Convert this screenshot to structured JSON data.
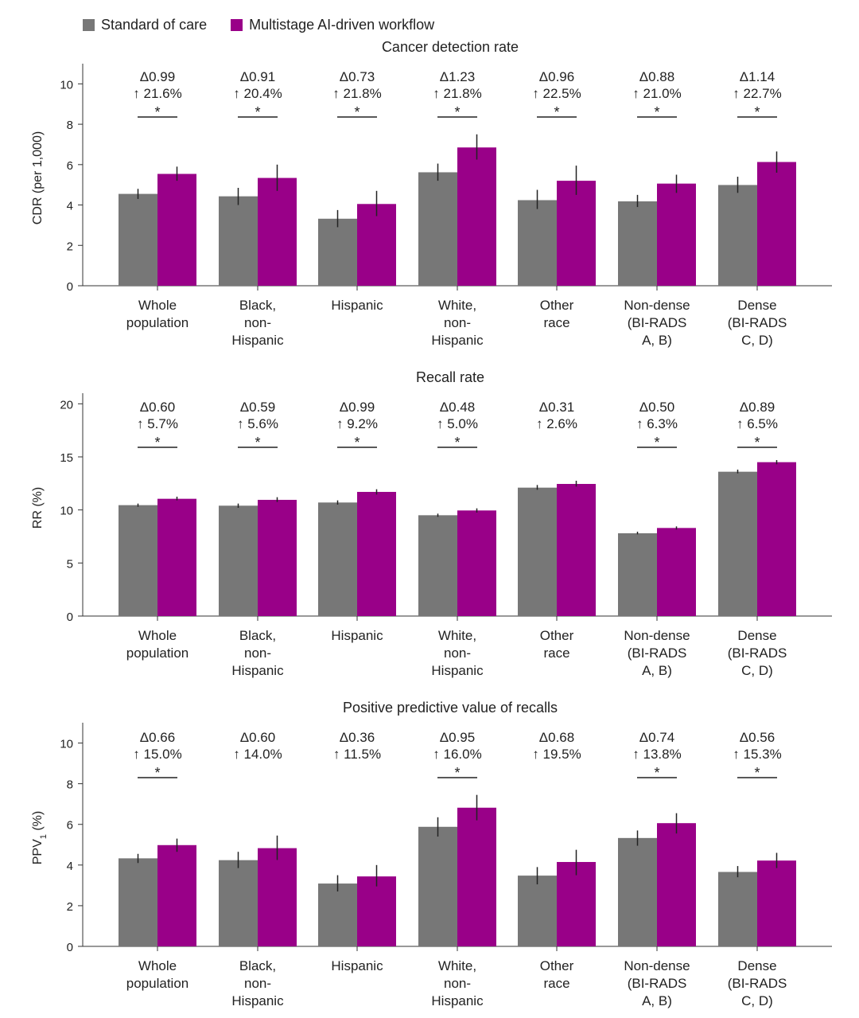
{
  "legend": {
    "series_a": "Standard of care",
    "series_b": "Multistage AI-driven workflow",
    "color_a": "#777777",
    "color_b": "#990088"
  },
  "categories": [
    [
      "Whole",
      "population"
    ],
    [
      "Black,",
      "non-",
      "Hispanic"
    ],
    [
      "Hispanic"
    ],
    [
      "White,",
      "non-",
      "Hispanic"
    ],
    [
      "Other",
      "race"
    ],
    [
      "Non-dense",
      "(BI-RADS",
      "A, B)"
    ],
    [
      "Dense",
      "(BI-RADS",
      "C, D)"
    ]
  ],
  "chart_data": [
    {
      "type": "bar",
      "title": "Cancer detection rate",
      "ylabel": "CDR (per 1,000)",
      "ylabel_sub": "",
      "ylabel_post": "",
      "ylim": [
        0,
        11
      ],
      "yticks": [
        0,
        2,
        4,
        6,
        8,
        10
      ],
      "series": [
        {
          "name": "Standard of care",
          "values": [
            4.55,
            4.43,
            3.32,
            5.62,
            4.24,
            4.18,
            4.99
          ],
          "err_low": [
            4.3,
            4.0,
            2.9,
            5.2,
            3.8,
            3.9,
            4.6
          ],
          "err_high": [
            4.8,
            4.85,
            3.75,
            6.05,
            4.75,
            4.5,
            5.4
          ]
        },
        {
          "name": "Multistage AI-driven workflow",
          "values": [
            5.54,
            5.34,
            4.05,
            6.85,
            5.2,
            5.06,
            6.13
          ],
          "err_low": [
            5.2,
            4.7,
            3.45,
            6.25,
            4.5,
            4.6,
            5.6
          ],
          "err_high": [
            5.9,
            6.0,
            4.7,
            7.5,
            5.95,
            5.5,
            6.65
          ]
        }
      ],
      "annotations": [
        {
          "delta": "Δ0.99",
          "pct": "↑ 21.6%",
          "sig": true
        },
        {
          "delta": "Δ0.91",
          "pct": "↑ 20.4%",
          "sig": true
        },
        {
          "delta": "Δ0.73",
          "pct": "↑ 21.8%",
          "sig": true
        },
        {
          "delta": "Δ1.23",
          "pct": "↑ 21.8%",
          "sig": true
        },
        {
          "delta": "Δ0.96",
          "pct": "↑ 22.5%",
          "sig": true
        },
        {
          "delta": "Δ0.88",
          "pct": "↑ 21.0%",
          "sig": true
        },
        {
          "delta": "Δ1.14",
          "pct": "↑ 22.7%",
          "sig": true
        }
      ]
    },
    {
      "type": "bar",
      "title": "Recall rate",
      "ylabel": "RR (%)",
      "ylabel_sub": "",
      "ylabel_post": "",
      "ylim": [
        0,
        21
      ],
      "yticks": [
        0,
        5,
        10,
        15,
        20
      ],
      "series": [
        {
          "name": "Standard of care",
          "values": [
            10.45,
            10.4,
            10.7,
            9.5,
            12.1,
            7.8,
            13.6
          ],
          "err_low": [
            10.3,
            10.2,
            10.5,
            9.35,
            11.9,
            7.7,
            13.45
          ],
          "err_high": [
            10.6,
            10.6,
            10.9,
            9.65,
            12.35,
            7.95,
            13.8
          ]
        },
        {
          "name": "Multistage AI-driven workflow",
          "values": [
            11.05,
            10.95,
            11.7,
            9.95,
            12.45,
            8.3,
            14.5
          ],
          "err_low": [
            10.9,
            10.75,
            11.45,
            9.75,
            12.2,
            8.15,
            14.3
          ],
          "err_high": [
            11.25,
            11.2,
            11.95,
            10.15,
            12.75,
            8.45,
            14.7
          ]
        }
      ],
      "annotations": [
        {
          "delta": "Δ0.60",
          "pct": "↑ 5.7%",
          "sig": true
        },
        {
          "delta": "Δ0.59",
          "pct": "↑ 5.6%",
          "sig": true
        },
        {
          "delta": "Δ0.99",
          "pct": "↑ 9.2%",
          "sig": true
        },
        {
          "delta": "Δ0.48",
          "pct": "↑ 5.0%",
          "sig": true
        },
        {
          "delta": "Δ0.31",
          "pct": "↑ 2.6%",
          "sig": false
        },
        {
          "delta": "Δ0.50",
          "pct": "↑ 6.3%",
          "sig": true
        },
        {
          "delta": "Δ0.89",
          "pct": "↑ 6.5%",
          "sig": true
        }
      ]
    },
    {
      "type": "bar",
      "title": "Positive predictive value of recalls",
      "ylabel": "PPV",
      "ylabel_sub": "1",
      "ylabel_post": " (%)",
      "ylim": [
        0,
        11
      ],
      "yticks": [
        0,
        2,
        4,
        6,
        8,
        10
      ],
      "series": [
        {
          "name": "Standard of care",
          "values": [
            4.33,
            4.24,
            3.09,
            5.88,
            3.48,
            5.33,
            3.66
          ],
          "err_low": [
            4.1,
            3.85,
            2.7,
            5.4,
            3.05,
            4.95,
            3.4
          ],
          "err_high": [
            4.55,
            4.65,
            3.5,
            6.35,
            3.9,
            5.7,
            3.95
          ]
        },
        {
          "name": "Multistage AI-driven workflow",
          "values": [
            4.98,
            4.83,
            3.44,
            6.82,
            4.15,
            6.06,
            4.22
          ],
          "err_low": [
            4.65,
            4.25,
            2.95,
            6.2,
            3.5,
            5.55,
            3.85
          ],
          "err_high": [
            5.3,
            5.45,
            4.0,
            7.45,
            4.75,
            6.55,
            4.6
          ]
        }
      ],
      "annotations": [
        {
          "delta": "Δ0.66",
          "pct": "↑ 15.0%",
          "sig": true
        },
        {
          "delta": "Δ0.60",
          "pct": "↑ 14.0%",
          "sig": false
        },
        {
          "delta": "Δ0.36",
          "pct": "↑ 11.5%",
          "sig": false
        },
        {
          "delta": "Δ0.95",
          "pct": "↑ 16.0%",
          "sig": true
        },
        {
          "delta": "Δ0.68",
          "pct": "↑ 19.5%",
          "sig": false
        },
        {
          "delta": "Δ0.74",
          "pct": "↑ 13.8%",
          "sig": true
        },
        {
          "delta": "Δ0.56",
          "pct": "↑ 15.3%",
          "sig": true
        }
      ]
    }
  ]
}
